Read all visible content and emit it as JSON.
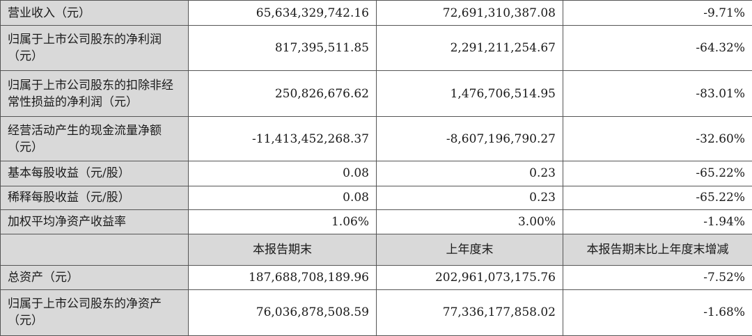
{
  "rows_top": [
    {
      "label": "营业收入（元）",
      "current": "65,634,329,742.16",
      "previous": "72,691,310,387.08",
      "change": "-9.71%"
    },
    {
      "label": "归属于上市公司股东的净利润（元）",
      "current": "817,395,511.85",
      "previous": "2,291,211,254.67",
      "change": "-64.32%"
    },
    {
      "label": "归属于上市公司股东的扣除非经常性损益的净利润（元）",
      "current": "250,826,676.62",
      "previous": "1,476,706,514.95",
      "change": "-83.01%"
    },
    {
      "label": "经营活动产生的现金流量净额（元）",
      "current": "-11,413,452,268.37",
      "previous": "-8,607,196,790.27",
      "change": "-32.60%"
    },
    {
      "label": "基本每股收益（元/股）",
      "current": "0.08",
      "previous": "0.23",
      "change": "-65.22%"
    },
    {
      "label": "稀释每股收益（元/股）",
      "current": "0.08",
      "previous": "0.23",
      "change": "-65.22%"
    },
    {
      "label": "加权平均净资产收益率",
      "current": "1.06%",
      "previous": "3.00%",
      "change": "-1.94%"
    }
  ],
  "period_header": {
    "current": "本报告期末",
    "previous": "上年度末",
    "change": "本报告期末比上年度末增减"
  },
  "rows_bottom": [
    {
      "label": "总资产（元）",
      "current": "187,688,708,189.96",
      "previous": "202,961,073,175.76",
      "change": "-7.52%"
    },
    {
      "label": "归属于上市公司股东的净资产（元）",
      "current": "76,036,878,508.59",
      "previous": "77,336,177,858.02",
      "change": "-1.68%"
    }
  ]
}
